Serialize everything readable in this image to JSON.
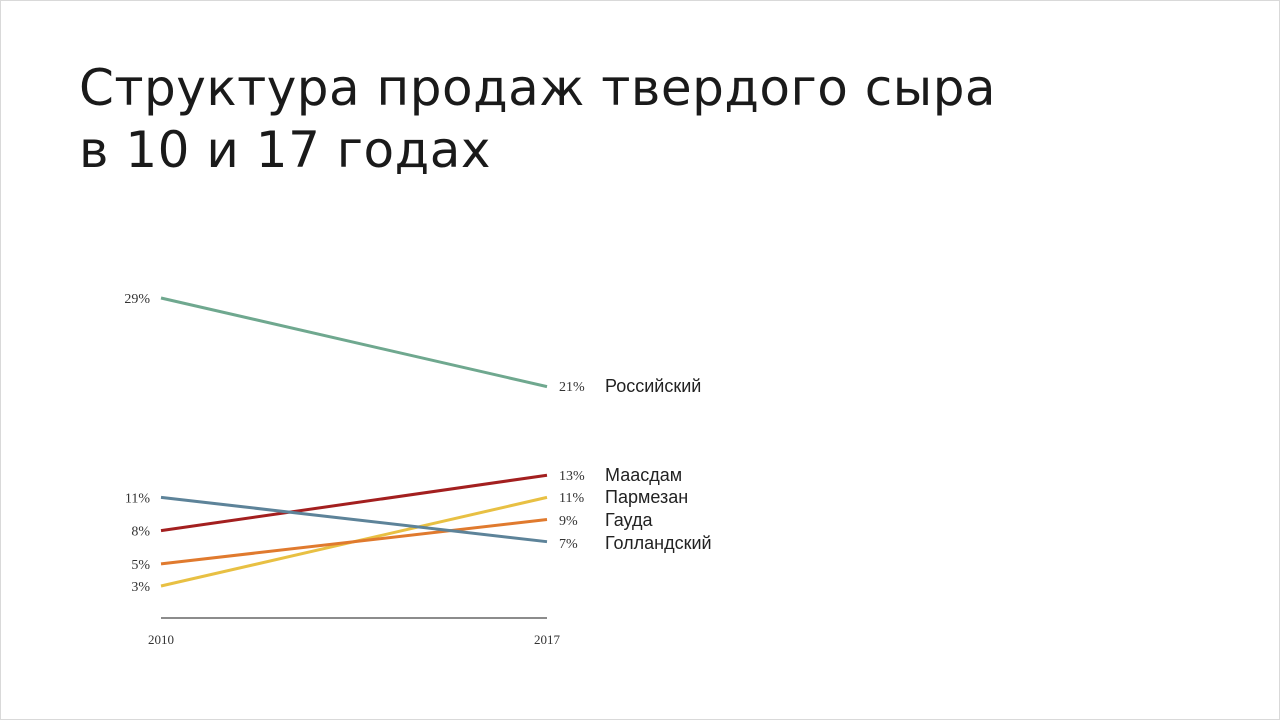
{
  "title_lines": [
    "Структура продаж твердого сыра",
    "в 10 и 17 годах"
  ],
  "chart_data": {
    "type": "line",
    "x": [
      "2010",
      "2017"
    ],
    "series": [
      {
        "name": "Российский",
        "values": [
          29,
          21
        ],
        "labels": [
          "29%",
          "21%"
        ],
        "color": "#6fa88f"
      },
      {
        "name": "Маасдам",
        "values": [
          8,
          13
        ],
        "labels": [
          "8%",
          "13%"
        ],
        "color": "#a31f1f"
      },
      {
        "name": "Пармезан",
        "values": [
          3,
          11
        ],
        "labels": [
          "3%",
          "11%"
        ],
        "color": "#e8c043"
      },
      {
        "name": "Гауда",
        "values": [
          5,
          9
        ],
        "labels": [
          "5%",
          "9%"
        ],
        "color": "#e07a2e"
      },
      {
        "name": "Голландский",
        "values": [
          11,
          7
        ],
        "labels": [
          "11%",
          "7%"
        ],
        "color": "#5d8399"
      }
    ],
    "ylim": [
      0,
      29
    ],
    "grid": false,
    "legend": "direct labels at right end of lines"
  }
}
